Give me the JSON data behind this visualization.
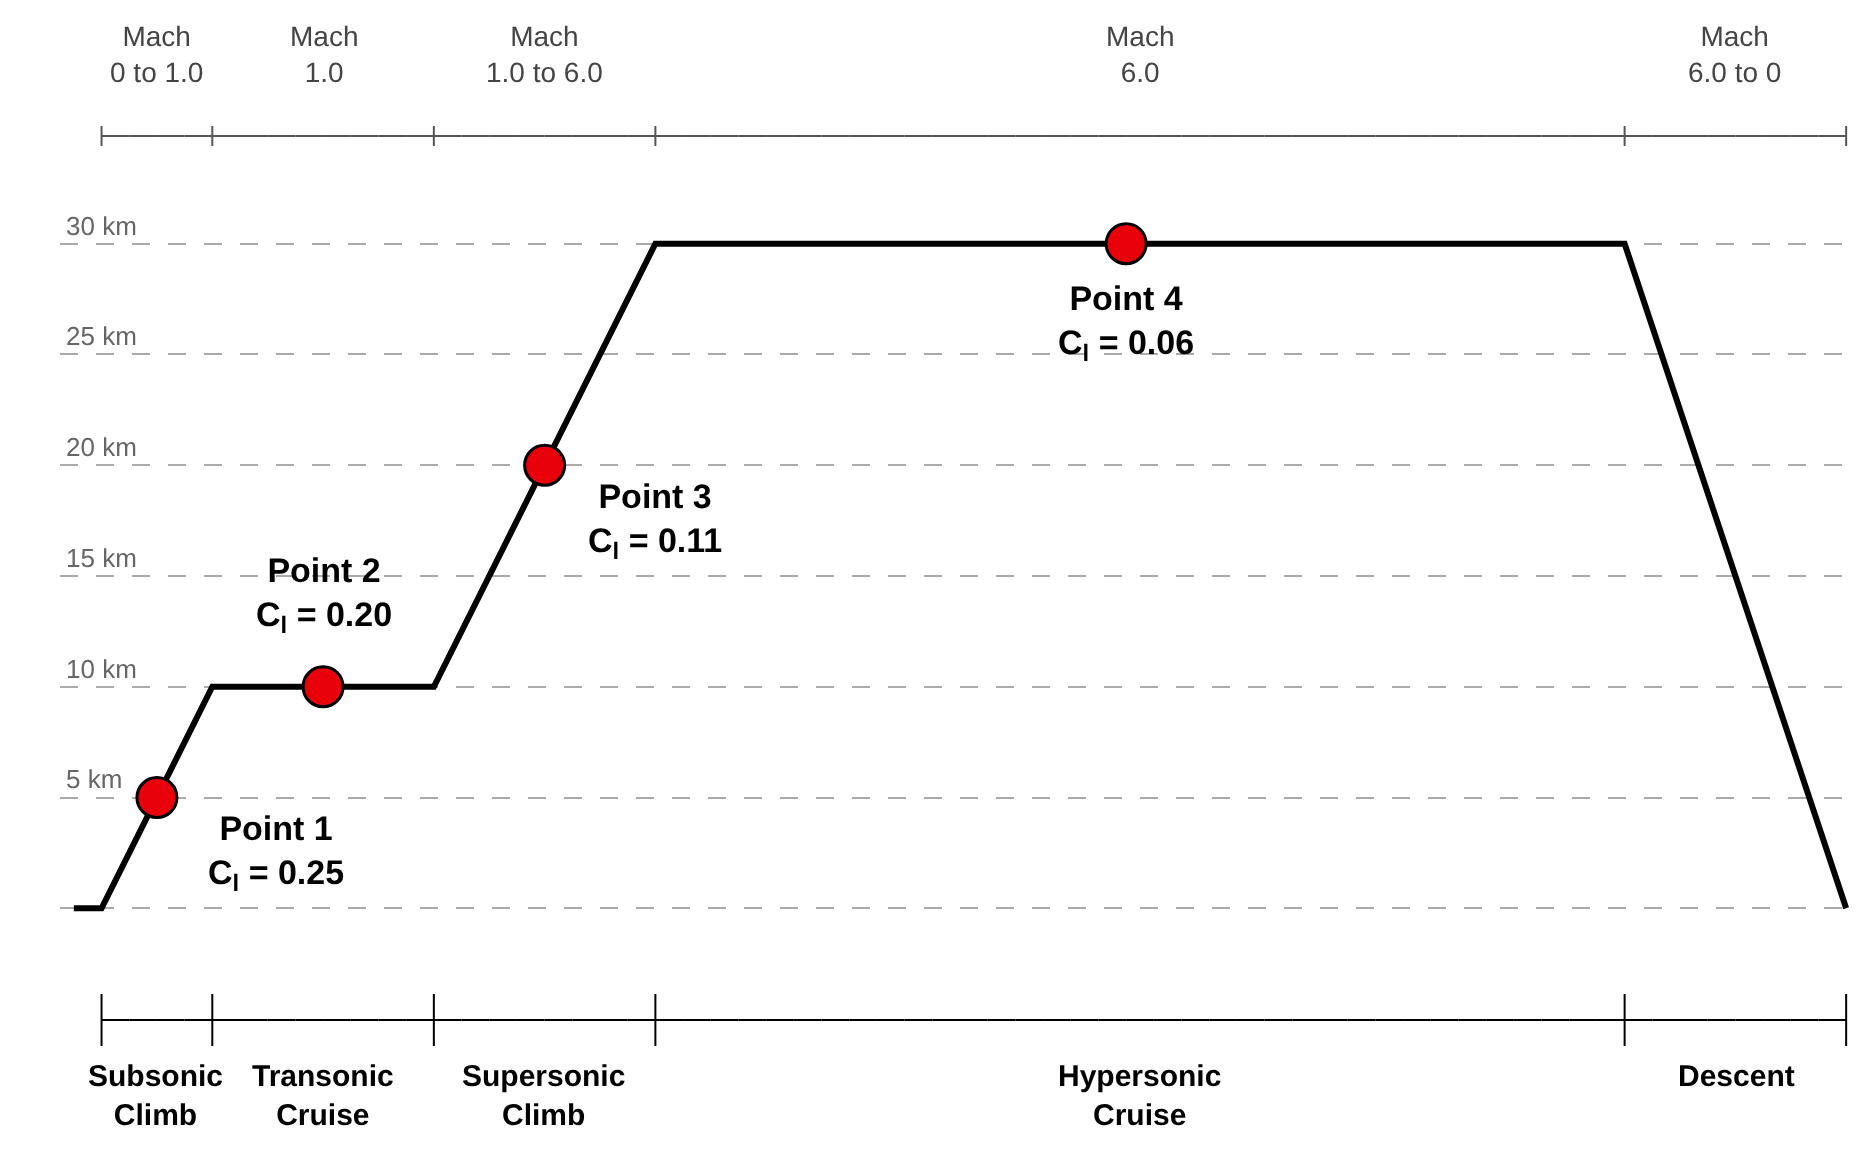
{
  "chart_data": {
    "type": "line",
    "categories": [
      null,
      null,
      null,
      null,
      null,
      null,
      null,
      null,
      null,
      null,
      null,
      null,
      null,
      null,
      null,
      null,
      null,
      null,
      null,
      null,
      null,
      null,
      null,
      null,
      null,
      null,
      null,
      null,
      null,
      null,
      null,
      null,
      null,
      null,
      null,
      null,
      null,
      null,
      null,
      null,
      null,
      null,
      null,
      null,
      null,
      null,
      null,
      null,
      null,
      null,
      null,
      null,
      null,
      null,
      null,
      null,
      null,
      null,
      null,
      null,
      null,
      null,
      null,
      null,
      null
    ],
    "series": [
      {
        "color": "#000000",
        "marker": "none",
        "line_style": "solid",
        "values": [
          0,
          0,
          null,
          null,
          null,
          10,
          null,
          null,
          null,
          null,
          null,
          null,
          null,
          10,
          null,
          null,
          null,
          null,
          null,
          null,
          null,
          30,
          null,
          null,
          null,
          null,
          null,
          null,
          null,
          null,
          null,
          null,
          null,
          null,
          null,
          null,
          null,
          null,
          null,
          null,
          null,
          null,
          null,
          null,
          null,
          null,
          null,
          null,
          null,
          null,
          null,
          null,
          null,
          null,
          null,
          null,
          30,
          null,
          null,
          null,
          null,
          null,
          null,
          null,
          0
        ]
      },
      {
        "type": "scatter",
        "color": "#e8000b",
        "marker": "circle",
        "values": [
          null,
          null,
          null,
          5,
          null,
          null,
          null,
          null,
          null,
          10,
          null,
          null,
          null,
          null,
          null,
          null,
          null,
          20,
          null,
          null,
          null,
          null,
          null,
          null,
          null,
          null,
          null,
          null,
          null,
          null,
          null,
          null,
          null,
          null,
          null,
          null,
          null,
          null,
          30,
          null,
          null,
          null,
          null,
          null,
          null,
          null,
          null,
          null,
          null,
          null,
          null,
          null,
          null,
          null,
          null,
          null,
          null,
          null,
          null,
          null,
          null,
          null,
          null,
          null,
          null
        ]
      }
    ],
    "ylim": [
      -11,
      41
    ],
    "yticks": [
      {
        "value": 0,
        "label": null
      },
      {
        "value": 5,
        "label": "5 km"
      },
      {
        "value": 10,
        "label": "10 km"
      },
      {
        "value": 15,
        "label": "15 km"
      },
      {
        "value": 20,
        "label": "20 km"
      },
      {
        "value": 25,
        "label": "25 km"
      },
      {
        "value": 30,
        "label": "30 km"
      }
    ],
    "grid": "y",
    "legend": false,
    "annotations": [
      "Mach\n0 to 1.0",
      "Mach\n1.0",
      "Mach\n1.0 to 6.0",
      "Mach\n6.0",
      "Mach\n6.0 to 0",
      "Subsonic\nClimb",
      "Transonic\nCruise",
      "Supersonic\nClimb",
      "Hypersonic\nCruise",
      "Descent",
      "Point 1\nC$_{l}$ = 0.25",
      "Point 2\nC$_{l}$ = 0.20",
      "Point 3\nC$_{l}$ = 0.11",
      "Point 4\nC$_{l}$ = 0.06"
    ]
  }
}
